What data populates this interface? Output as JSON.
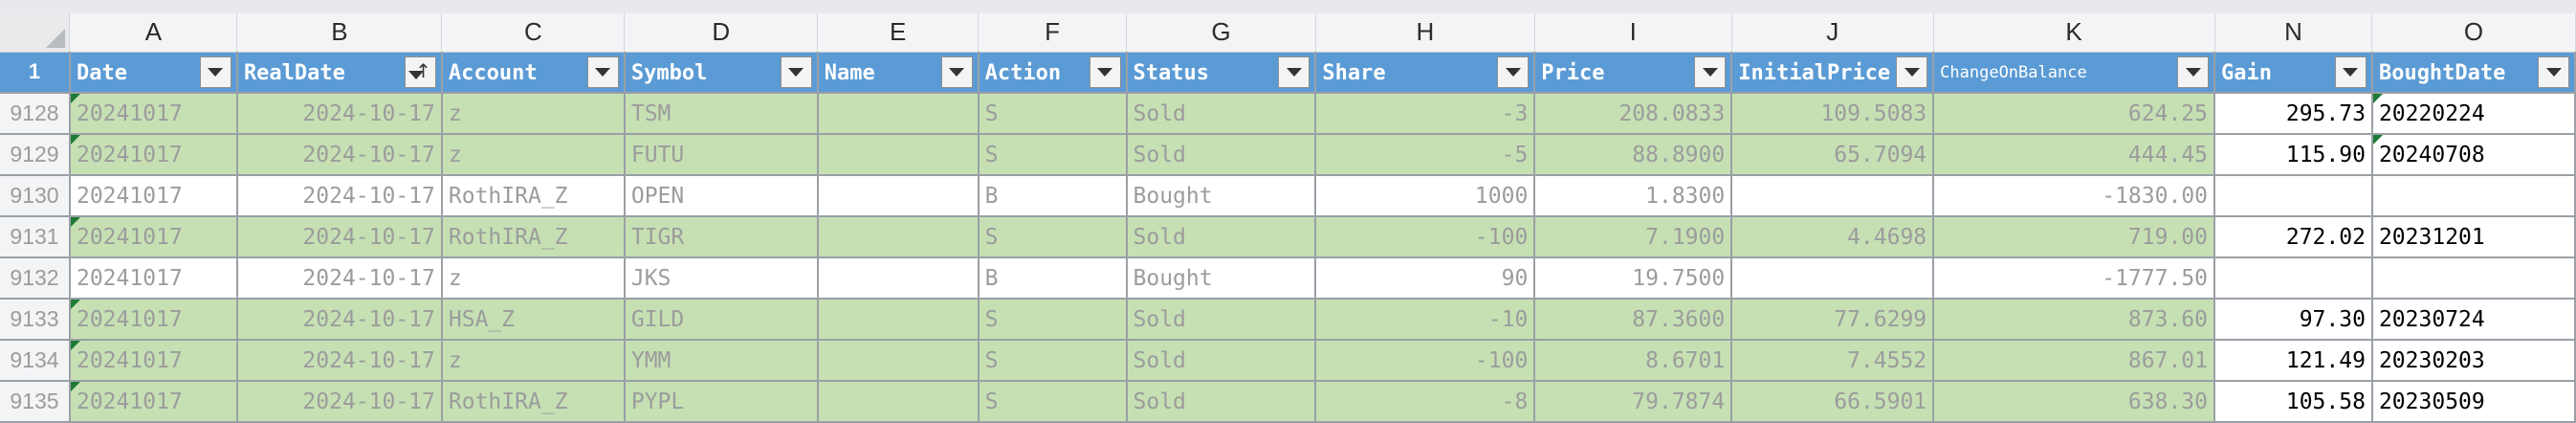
{
  "columns": [
    "A",
    "B",
    "C",
    "D",
    "E",
    "F",
    "G",
    "H",
    "I",
    "J",
    "K",
    "N",
    "O"
  ],
  "header_row_number": "1",
  "headers": [
    "Date",
    "RealDate",
    "Account",
    "Symbol",
    "Name",
    "Action",
    "Status",
    "Share",
    "Price",
    "InitialPrice",
    "ChangeOnBalance",
    "Gain",
    "BoughtDate"
  ],
  "sort_indicator": "↑",
  "rows": [
    {
      "num": "9128",
      "status_kind": "sold",
      "cells": [
        "20241017",
        "2024-10-17",
        "z",
        "TSM",
        "",
        "S",
        "Sold",
        "-3",
        "208.0833",
        "109.5083",
        "624.25",
        "295.73",
        "20220224"
      ]
    },
    {
      "num": "9129",
      "status_kind": "sold",
      "cells": [
        "20241017",
        "2024-10-17",
        "z",
        "FUTU",
        "",
        "S",
        "Sold",
        "-5",
        "88.8900",
        "65.7094",
        "444.45",
        "115.90",
        "20240708"
      ]
    },
    {
      "num": "9130",
      "status_kind": "bought",
      "cells": [
        "20241017",
        "2024-10-17",
        "RothIRA_Z",
        "OPEN",
        "",
        "B",
        "Bought",
        "1000",
        "1.8300",
        "",
        "-1830.00",
        "",
        ""
      ]
    },
    {
      "num": "9131",
      "status_kind": "sold",
      "cells": [
        "20241017",
        "2024-10-17",
        "RothIRA_Z",
        "TIGR",
        "",
        "S",
        "Sold",
        "-100",
        "7.1900",
        "4.4698",
        "719.00",
        "272.02",
        "20231201"
      ]
    },
    {
      "num": "9132",
      "status_kind": "bought",
      "cells": [
        "20241017",
        "2024-10-17",
        "z",
        "JKS",
        "",
        "B",
        "Bought",
        "90",
        "19.7500",
        "",
        "-1777.50",
        "",
        ""
      ]
    },
    {
      "num": "9133",
      "status_kind": "sold",
      "cells": [
        "20241017",
        "2024-10-17",
        "HSA_Z",
        "GILD",
        "",
        "S",
        "Sold",
        "-10",
        "87.3600",
        "77.6299",
        "873.60",
        "97.30",
        "20230724"
      ]
    },
    {
      "num": "9134",
      "status_kind": "sold",
      "cells": [
        "20241017",
        "2024-10-17",
        "z",
        "YMM",
        "",
        "S",
        "Sold",
        "-100",
        "8.6701",
        "7.4552",
        "867.01",
        "121.49",
        "20230203"
      ]
    },
    {
      "num": "9135",
      "status_kind": "sold",
      "cells": [
        "20241017",
        "2024-10-17",
        "RothIRA_Z",
        "PYPL",
        "",
        "S",
        "Sold",
        "-8",
        "79.7874",
        "66.5901",
        "638.30",
        "105.58",
        "20230509"
      ]
    }
  ],
  "colors": {
    "header_fill": "#5b9bd5",
    "sold_fill": "#c6e0b4",
    "bought_fill": "#ffffff",
    "dim_text": "#9c9c9c"
  },
  "icons": {
    "filter": "filter-dropdown-icon",
    "sort": "sort-ascending-icon",
    "error_flag": "green-triangle-icon"
  }
}
